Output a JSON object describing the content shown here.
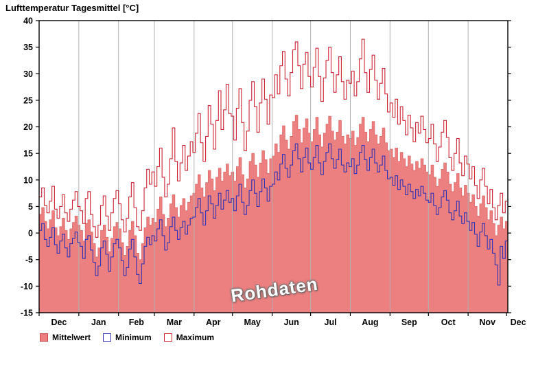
{
  "title": "Lufttemperatur Tagesmittel [°C]",
  "watermark": "Rohdaten",
  "colors": {
    "mean_fill": "#ec7f7f",
    "mean_border": "#dd6a6a",
    "min_line": "#3333b3",
    "max_line": "#cc2233",
    "grid": "#b0b0b0",
    "frame": "#000000"
  },
  "legend": [
    {
      "label": "Mittelwert",
      "type": "fill",
      "color": "#ec7f7f",
      "border": "#cc4444"
    },
    {
      "label": "Minimum",
      "type": "line",
      "color": "#3333b3"
    },
    {
      "label": "Maximum",
      "type": "line",
      "color": "#cc2233"
    }
  ],
  "chart_data": {
    "type": "line",
    "title": "Lufttemperatur Tagesmittel [°C]",
    "xlabel": "",
    "ylabel": "",
    "ylim": [
      -15,
      40
    ],
    "yticks": [
      40,
      35,
      30,
      25,
      20,
      15,
      10,
      5,
      0,
      -5,
      -10,
      -15
    ],
    "grid": "vertical-month-boundaries",
    "legend_position": "bottom-left",
    "x_unit": "day of year starting Dec 1, values sampled every 2 days (estimated from plot)",
    "sample_interval_days": 2,
    "month_labels": [
      "Dec",
      "Jan",
      "Feb",
      "Mar",
      "Apr",
      "May",
      "Jun",
      "Jul",
      "Aug",
      "Sep",
      "Oct",
      "Nov",
      "Dec"
    ],
    "month_days": [
      31,
      31,
      28,
      31,
      30,
      31,
      30,
      31,
      31,
      30,
      31,
      30
    ],
    "series": [
      {
        "name": "Mittelwert",
        "style": "step-area",
        "color": "#ec7f7f",
        "values": [
          3.5,
          4.8,
          2.2,
          0.8,
          2.5,
          4.2,
          1.0,
          -0.5,
          1.2,
          2.8,
          0.5,
          -1.2,
          0.8,
          2.0,
          3.2,
          1.5,
          0.5,
          -1.5,
          1.8,
          2.5,
          0.2,
          -2.0,
          -4.5,
          -2.8,
          0.5,
          1.5,
          -0.8,
          -3.5,
          -1.0,
          1.2,
          2.0,
          0.8,
          -1.8,
          -4.2,
          -2.5,
          0.5,
          2.2,
          -0.5,
          -3.8,
          -5.0,
          -2.0,
          1.0,
          3.0,
          1.5,
          2.8,
          2.0,
          4.5,
          6.8,
          3.5,
          1.2,
          2.8,
          5.5,
          7.2,
          4.8,
          3.0,
          5.2,
          6.5,
          4.2,
          5.8,
          7.0,
          7.5,
          9.2,
          11.0,
          8.5,
          6.8,
          9.5,
          11.8,
          10.2,
          8.0,
          10.5,
          12.2,
          9.8,
          11.5,
          13.0,
          10.8,
          11.5,
          9.8,
          12.5,
          14.2,
          11.0,
          8.5,
          10.2,
          13.5,
          15.0,
          12.8,
          10.5,
          13.2,
          15.5,
          13.8,
          11.2,
          14.0,
          14.5,
          16.8,
          15.2,
          18.5,
          20.2,
          17.5,
          15.8,
          18.2,
          21.0,
          22.2,
          19.5,
          17.0,
          19.8,
          21.5,
          18.8,
          17.2,
          19.5,
          21.8,
          18.5,
          16.2,
          18.8,
          20.5,
          22.0,
          19.2,
          17.5,
          19.0,
          21.2,
          18.2,
          16.8,
          18.5,
          17.8,
          19.2,
          16.5,
          18.0,
          20.5,
          21.8,
          19.0,
          17.2,
          19.5,
          21.0,
          18.5,
          16.8,
          18.2,
          19.8,
          17.0,
          15.5,
          15.8,
          14.2,
          16.0,
          13.5,
          15.2,
          14.0,
          12.5,
          14.5,
          13.0,
          11.8,
          13.5,
          12.2,
          14.0,
          12.8,
          11.5,
          11.0,
          12.8,
          10.5,
          8.8,
          10.2,
          12.0,
          13.2,
          11.5,
          9.2,
          7.8,
          9.5,
          11.2,
          8.5,
          7.0,
          9.0,
          7.5,
          5.8,
          7.2,
          5.0,
          3.2,
          5.5,
          7.0,
          4.8,
          2.5,
          4.2,
          1.8,
          -0.5,
          1.5,
          3.0,
          0.8,
          2.2
        ]
      },
      {
        "name": "Minimum",
        "style": "step-line",
        "color": "#3333b3",
        "values": [
          0.5,
          1.8,
          -1.2,
          -2.5,
          -0.8,
          1.0,
          -2.2,
          -3.8,
          -1.5,
          -0.2,
          -2.8,
          -4.5,
          -2.0,
          -1.0,
          0.2,
          -1.8,
          -2.5,
          -4.8,
          -1.2,
          -0.5,
          -3.2,
          -5.5,
          -8.0,
          -6.2,
          -2.8,
          -1.5,
          -4.0,
          -7.2,
          -4.5,
          -2.0,
          -1.2,
          -2.8,
          -5.2,
          -8.0,
          -6.5,
          -3.0,
          -1.2,
          -4.5,
          -7.8,
          -9.5,
          -5.8,
          -2.5,
          -0.8,
          -2.2,
          -0.5,
          -1.5,
          0.8,
          2.5,
          -0.5,
          -3.2,
          -1.8,
          1.2,
          3.0,
          0.5,
          -1.2,
          1.0,
          2.2,
          -0.2,
          1.5,
          2.8,
          3.0,
          4.8,
          6.5,
          3.8,
          1.5,
          4.2,
          7.0,
          5.5,
          2.8,
          5.2,
          7.5,
          4.5,
          6.2,
          8.0,
          5.8,
          6.5,
          4.2,
          7.0,
          9.2,
          5.8,
          3.5,
          5.2,
          8.0,
          10.0,
          7.5,
          5.0,
          7.8,
          10.2,
          8.5,
          6.0,
          8.8,
          9.2,
          11.5,
          10.0,
          13.0,
          14.8,
          12.2,
          10.5,
          12.8,
          15.5,
          16.8,
          14.0,
          11.5,
          14.2,
          16.0,
          13.2,
          12.0,
          14.2,
          16.5,
          13.2,
          11.0,
          13.5,
          15.2,
          16.8,
          14.0,
          12.2,
          13.8,
          15.8,
          12.8,
          11.5,
          13.2,
          12.5,
          14.0,
          11.2,
          12.8,
          15.2,
          16.5,
          13.8,
          11.8,
          14.2,
          15.8,
          13.2,
          11.5,
          12.8,
          14.5,
          11.8,
          10.2,
          10.5,
          9.0,
          10.8,
          8.2,
          10.0,
          8.8,
          7.2,
          9.2,
          7.8,
          6.5,
          8.2,
          7.0,
          8.8,
          7.5,
          6.2,
          5.8,
          7.5,
          5.2,
          3.5,
          4.8,
          6.8,
          8.0,
          6.2,
          3.8,
          2.5,
          4.2,
          6.0,
          3.2,
          1.8,
          3.8,
          2.2,
          0.5,
          2.0,
          -0.2,
          -2.5,
          0.2,
          1.8,
          -0.5,
          -3.0,
          -1.2,
          -3.8,
          -6.0,
          -9.8,
          -2.5,
          -4.8,
          -1.5
        ]
      },
      {
        "name": "Maximum",
        "style": "step-line",
        "color": "#cc2233",
        "values": [
          6.8,
          8.5,
          5.2,
          3.8,
          6.0,
          8.8,
          4.5,
          2.8,
          5.0,
          7.2,
          3.8,
          2.2,
          4.5,
          6.2,
          7.8,
          5.0,
          4.2,
          1.8,
          6.5,
          7.8,
          3.5,
          1.2,
          -0.8,
          1.5,
          5.2,
          7.0,
          3.2,
          0.5,
          3.8,
          6.5,
          8.0,
          5.5,
          2.5,
          0.2,
          2.8,
          6.8,
          9.5,
          4.8,
          1.2,
          0.5,
          4.2,
          8.5,
          12.0,
          9.2,
          11.5,
          8.8,
          12.5,
          16.0,
          10.5,
          6.8,
          9.2,
          14.0,
          19.8,
          13.5,
          9.8,
          13.2,
          16.5,
          11.8,
          14.5,
          17.2,
          15.2,
          18.8,
          22.5,
          17.0,
          13.5,
          18.2,
          24.0,
          20.5,
          15.8,
          21.2,
          26.8,
          19.5,
          23.2,
          28.0,
          22.5,
          22.0,
          17.5,
          23.5,
          27.2,
          20.8,
          15.5,
          19.2,
          25.0,
          28.5,
          23.8,
          19.0,
          24.5,
          29.0,
          25.2,
          20.5,
          26.0,
          25.5,
          29.8,
          26.2,
          31.5,
          34.2,
          29.0,
          25.8,
          30.2,
          34.5,
          36.0,
          31.5,
          27.2,
          31.8,
          34.0,
          29.5,
          27.5,
          31.2,
          34.8,
          29.5,
          24.8,
          29.2,
          32.5,
          35.0,
          30.2,
          26.5,
          29.8,
          33.2,
          28.5,
          25.2,
          28.8,
          28.2,
          30.5,
          25.8,
          28.5,
          32.8,
          36.5,
          30.2,
          26.5,
          30.8,
          33.5,
          28.8,
          25.2,
          28.2,
          31.0,
          26.2,
          22.8,
          24.5,
          21.8,
          25.2,
          20.5,
          23.8,
          21.2,
          18.5,
          22.2,
          19.8,
          17.2,
          20.8,
          18.8,
          22.0,
          19.5,
          17.0,
          17.8,
          20.5,
          16.8,
          13.5,
          16.2,
          19.0,
          21.2,
          18.0,
          14.2,
          11.8,
          15.0,
          17.8,
          13.2,
          10.8,
          14.5,
          13.0,
          10.2,
          12.5,
          9.0,
          6.5,
          10.0,
          12.2,
          8.8,
          5.5,
          8.2,
          4.8,
          2.5,
          5.2,
          7.5,
          3.8,
          6.0
        ]
      }
    ]
  }
}
